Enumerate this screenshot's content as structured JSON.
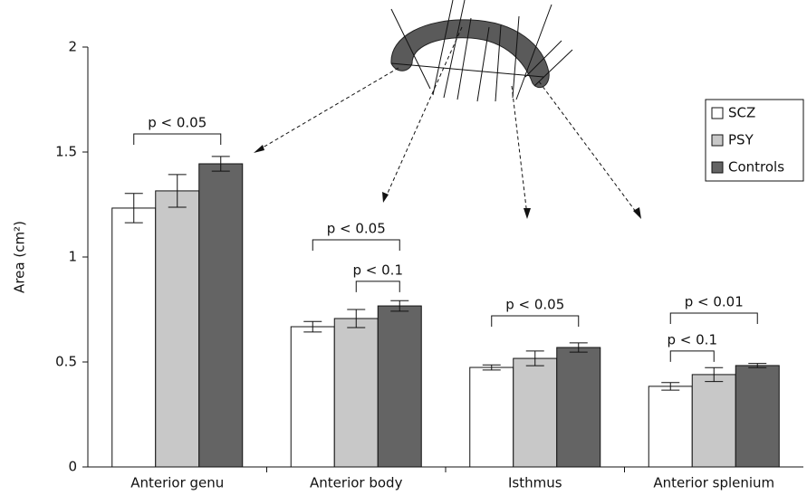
{
  "chart_data": {
    "type": "bar",
    "y_label": "Area (cm²)",
    "categories": [
      "Anterior genu",
      "Anterior body",
      "Isthmus",
      "Anterior splenium"
    ],
    "series": [
      {
        "name": "SCZ",
        "color": "#ffffff",
        "values": [
          1.233,
          0.668,
          0.474,
          0.384
        ],
        "errors": [
          0.07,
          0.025,
          0.012,
          0.018
        ]
      },
      {
        "name": "PSY",
        "color": "#c8c8c8",
        "values": [
          1.315,
          0.707,
          0.517,
          0.44
        ],
        "errors": [
          0.078,
          0.043,
          0.035,
          0.033
        ]
      },
      {
        "name": "Controls",
        "color": "#646464",
        "values": [
          1.444,
          0.767,
          0.569,
          0.483
        ],
        "errors": [
          0.035,
          0.025,
          0.022,
          0.01
        ]
      }
    ],
    "annotations": [
      {
        "text": "p < 0.05",
        "category": 0,
        "from": 0,
        "to": 2,
        "y": 1.586
      },
      {
        "text": "p < 0.05",
        "category": 1,
        "from": 0,
        "to": 2,
        "y": 1.082
      },
      {
        "text": "p < 0.1",
        "category": 1,
        "from": 1,
        "to": 2,
        "y": 0.884
      },
      {
        "text": "p < 0.05",
        "category": 2,
        "from": 0,
        "to": 2,
        "y": 0.72
      },
      {
        "text": "p < 0.01",
        "category": 3,
        "from": 0,
        "to": 2,
        "y": 0.733
      },
      {
        "text": "p < 0.1",
        "category": 3,
        "from": 0,
        "to": 1,
        "y": 0.552
      }
    ],
    "ylim": [
      0,
      2
    ],
    "yticks": [
      0,
      0.5,
      1,
      1.5,
      2
    ],
    "grid": false,
    "legend": "upper right"
  }
}
